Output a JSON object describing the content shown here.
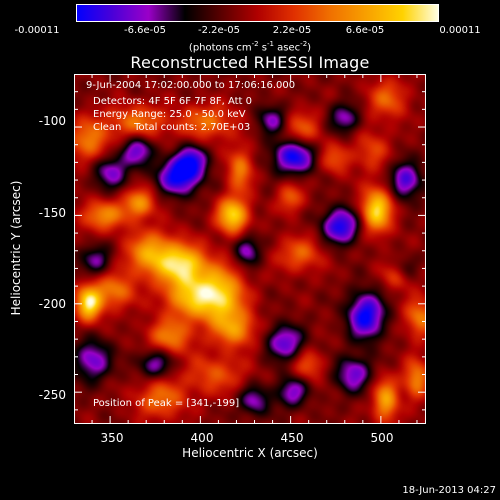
{
  "colorbar": {
    "tick_labels": [
      "-0.00011",
      "-6.6e-05",
      "-2.2e-05",
      "2.2e-05",
      "6.6e-05",
      "0.00011"
    ],
    "units_prefix": "(photons cm",
    "units_exp1": "-2",
    "units_mid": " s",
    "units_exp2": "-1",
    "units_mid2": " asec",
    "units_exp3": "-2",
    "units_suffix": ")",
    "colors": [
      "#0000ff",
      "#4a00d8",
      "#9a00c8",
      "#000000",
      "#5a0000",
      "#b00000",
      "#e03000",
      "#f07000",
      "#f8a000",
      "#ffd200",
      "#ffffe8"
    ]
  },
  "chart_data": {
    "type": "heatmap",
    "title": "Reconstructed RHESSI Image",
    "xlabel": "Heliocentric X (arcsec)",
    "ylabel": "Heliocentric Y (arcsec)",
    "x_ticks": [
      350,
      400,
      450,
      500
    ],
    "y_ticks": [
      -100,
      -150,
      -200,
      -250
    ],
    "xlim": [
      330,
      525
    ],
    "ylim": [
      -268,
      -70
    ],
    "vmin": -0.00011,
    "vmax": 0.00011,
    "peak": [
      341,
      -199
    ],
    "sources": [
      {
        "x": 338,
        "y": -200,
        "amp": 1.0,
        "sx": 5,
        "sy": 7
      },
      {
        "x": 352,
        "y": -193,
        "amp": 0.55,
        "sx": 8,
        "sy": 7
      },
      {
        "x": 373,
        "y": -172,
        "amp": 0.75,
        "sx": 10,
        "sy": 9
      },
      {
        "x": 391,
        "y": -178,
        "amp": 0.85,
        "sx": 9,
        "sy": 8
      },
      {
        "x": 395,
        "y": -196,
        "amp": 0.75,
        "sx": 11,
        "sy": 9
      },
      {
        "x": 412,
        "y": -196,
        "amp": 0.8,
        "sx": 9,
        "sy": 12
      },
      {
        "x": 420,
        "y": -215,
        "amp": 0.55,
        "sx": 8,
        "sy": 7
      },
      {
        "x": 383,
        "y": -219,
        "amp": 0.55,
        "sx": 9,
        "sy": 7
      },
      {
        "x": 408,
        "y": -240,
        "amp": 0.4,
        "sx": 12,
        "sy": 8
      },
      {
        "x": 418,
        "y": -150,
        "amp": 0.95,
        "sx": 6,
        "sy": 7
      },
      {
        "x": 422,
        "y": -124,
        "amp": 0.55,
        "sx": 5,
        "sy": 9
      },
      {
        "x": 404,
        "y": -97,
        "amp": 0.5,
        "sx": 11,
        "sy": 7
      },
      {
        "x": 365,
        "y": -97,
        "amp": 0.5,
        "sx": 12,
        "sy": 7
      },
      {
        "x": 338,
        "y": -108,
        "amp": 0.55,
        "sx": 8,
        "sy": 9
      },
      {
        "x": 346,
        "y": -150,
        "amp": 0.6,
        "sx": 9,
        "sy": 6
      },
      {
        "x": 366,
        "y": -143,
        "amp": 0.65,
        "sx": 6,
        "sy": 6
      },
      {
        "x": 456,
        "y": -102,
        "amp": 0.45,
        "sx": 8,
        "sy": 8
      },
      {
        "x": 475,
        "y": -118,
        "amp": 0.4,
        "sx": 6,
        "sy": 6
      },
      {
        "x": 495,
        "y": -113,
        "amp": 0.35,
        "sx": 7,
        "sy": 8
      },
      {
        "x": 504,
        "y": -84,
        "amp": 0.45,
        "sx": 8,
        "sy": 8
      },
      {
        "x": 450,
        "y": -140,
        "amp": 0.45,
        "sx": 5,
        "sy": 6
      },
      {
        "x": 498,
        "y": -147,
        "amp": 0.95,
        "sx": 6,
        "sy": 9
      },
      {
        "x": 522,
        "y": -208,
        "amp": 0.55,
        "sx": 6,
        "sy": 8
      },
      {
        "x": 510,
        "y": -183,
        "amp": 0.45,
        "sx": 6,
        "sy": 6
      },
      {
        "x": 455,
        "y": -172,
        "amp": 0.45,
        "sx": 9,
        "sy": 7
      },
      {
        "x": 460,
        "y": -235,
        "amp": 0.4,
        "sx": 6,
        "sy": 6
      },
      {
        "x": 503,
        "y": -255,
        "amp": 0.7,
        "sx": 5,
        "sy": 9
      },
      {
        "x": 520,
        "y": -243,
        "amp": 0.6,
        "sx": 5,
        "sy": 8
      },
      {
        "x": 378,
        "y": -254,
        "amp": 0.5,
        "sx": 10,
        "sy": 8
      },
      {
        "x": 388,
        "y": -128,
        "amp": -0.9,
        "sx": 8,
        "sy": 7
      },
      {
        "x": 395,
        "y": -119,
        "amp": -0.7,
        "sx": 6,
        "sy": 6
      },
      {
        "x": 365,
        "y": -113,
        "amp": -0.6,
        "sx": 6,
        "sy": 6
      },
      {
        "x": 350,
        "y": -125,
        "amp": -0.55,
        "sx": 7,
        "sy": 7
      },
      {
        "x": 452,
        "y": -116,
        "amp": -0.9,
        "sx": 8,
        "sy": 7
      },
      {
        "x": 478,
        "y": -156,
        "amp": -0.85,
        "sx": 7,
        "sy": 7
      },
      {
        "x": 514,
        "y": -130,
        "amp": -0.7,
        "sx": 6,
        "sy": 7
      },
      {
        "x": 492,
        "y": -207,
        "amp": -0.9,
        "sx": 7,
        "sy": 9
      },
      {
        "x": 447,
        "y": -222,
        "amp": -0.65,
        "sx": 7,
        "sy": 7
      },
      {
        "x": 451,
        "y": -250,
        "amp": -0.55,
        "sx": 6,
        "sy": 6
      },
      {
        "x": 485,
        "y": -240,
        "amp": -0.6,
        "sx": 7,
        "sy": 7
      },
      {
        "x": 430,
        "y": -255,
        "amp": -0.5,
        "sx": 6,
        "sy": 6
      },
      {
        "x": 375,
        "y": -234,
        "amp": -0.5,
        "sx": 7,
        "sy": 6
      },
      {
        "x": 340,
        "y": -232,
        "amp": -0.6,
        "sx": 7,
        "sy": 8
      },
      {
        "x": 342,
        "y": -175,
        "amp": -0.45,
        "sx": 6,
        "sy": 6
      },
      {
        "x": 426,
        "y": -170,
        "amp": -0.55,
        "sx": 5,
        "sy": 6
      },
      {
        "x": 440,
        "y": -96,
        "amp": -0.5,
        "sx": 6,
        "sy": 6
      },
      {
        "x": 480,
        "y": -95,
        "amp": -0.5,
        "sx": 6,
        "sy": 6
      },
      {
        "x": 513,
        "y": -180,
        "amp": -0.4,
        "sx": 5,
        "sy": 5
      }
    ]
  },
  "annotations": {
    "time_range": "9-Jun-2004 17:02:00.000 to 17:06:16.000",
    "detectors": "Detectors: 4F 5F 6F 7F 8F, Att 0",
    "energy_range": "Energy Range: 25.0 - 50.0 keV",
    "algorithm": "Clean    Total counts: 2.70E+03",
    "peak_position": "Position of Peak = [341,-199]"
  },
  "timestamp": "18-Jun-2013 04:27"
}
